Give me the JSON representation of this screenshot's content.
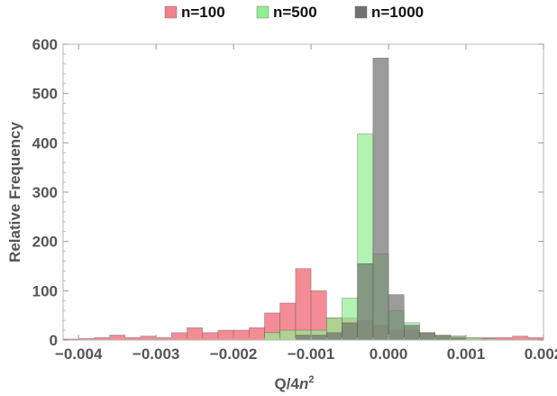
{
  "chart_data": {
    "type": "bar",
    "subtype": "overlapping-histogram",
    "title": "",
    "xlabel_main": "Q/4",
    "xlabel_var": "n",
    "xlabel_sup": "2",
    "ylabel": "Relative Frequency",
    "xlim": [
      -0.0042,
      0.002
    ],
    "ylim": [
      0,
      600
    ],
    "bin_width": 0.0002,
    "x_ticks": [
      -0.004,
      -0.003,
      -0.002,
      -0.001,
      0.0,
      0.001,
      0.002
    ],
    "x_tick_labels": [
      "−0.004",
      "−0.003",
      "−0.002",
      "−0.001",
      "0.000",
      "0.001",
      "0.002"
    ],
    "y_ticks": [
      0,
      100,
      200,
      300,
      400,
      500,
      600
    ],
    "y_tick_labels": [
      "0",
      "100",
      "200",
      "300",
      "400",
      "500",
      "600"
    ],
    "legend_position": "top",
    "grid": false,
    "series": [
      {
        "name": "n=100",
        "color": "#f2808a",
        "bins": [
          {
            "x0": -0.0042,
            "y": 2
          },
          {
            "x0": -0.004,
            "y": 3
          },
          {
            "x0": -0.0038,
            "y": 5
          },
          {
            "x0": -0.0036,
            "y": 10
          },
          {
            "x0": -0.0034,
            "y": 5
          },
          {
            "x0": -0.0032,
            "y": 8
          },
          {
            "x0": -0.003,
            "y": 5
          },
          {
            "x0": -0.0028,
            "y": 15
          },
          {
            "x0": -0.0026,
            "y": 25
          },
          {
            "x0": -0.0024,
            "y": 15
          },
          {
            "x0": -0.0022,
            "y": 20
          },
          {
            "x0": -0.002,
            "y": 20
          },
          {
            "x0": -0.0018,
            "y": 25
          },
          {
            "x0": -0.0016,
            "y": 55
          },
          {
            "x0": -0.0014,
            "y": 75
          },
          {
            "x0": -0.0012,
            "y": 145
          },
          {
            "x0": -0.001,
            "y": 100
          },
          {
            "x0": -0.0008,
            "y": 45
          },
          {
            "x0": -0.0006,
            "y": 45
          },
          {
            "x0": -0.0004,
            "y": 40
          },
          {
            "x0": -0.0002,
            "y": 30
          },
          {
            "x0": 0.0,
            "y": 20
          },
          {
            "x0": 0.0002,
            "y": 20
          },
          {
            "x0": 0.0004,
            "y": 15
          },
          {
            "x0": 0.0006,
            "y": 10
          },
          {
            "x0": 0.0008,
            "y": 8
          },
          {
            "x0": 0.001,
            "y": 5
          },
          {
            "x0": 0.0012,
            "y": 5
          },
          {
            "x0": 0.0014,
            "y": 5
          },
          {
            "x0": 0.0016,
            "y": 8
          },
          {
            "x0": 0.0018,
            "y": 5
          }
        ]
      },
      {
        "name": "n=500",
        "color": "#90f090",
        "bins": [
          {
            "x0": -0.0016,
            "y": 15
          },
          {
            "x0": -0.0014,
            "y": 20
          },
          {
            "x0": -0.0012,
            "y": 20
          },
          {
            "x0": -0.001,
            "y": 20
          },
          {
            "x0": -0.0008,
            "y": 45
          },
          {
            "x0": -0.0006,
            "y": 85
          },
          {
            "x0": -0.0004,
            "y": 418
          },
          {
            "x0": -0.0002,
            "y": 175
          },
          {
            "x0": 0.0,
            "y": 60
          },
          {
            "x0": 0.0002,
            "y": 35
          },
          {
            "x0": 0.0004,
            "y": 15
          },
          {
            "x0": 0.0006,
            "y": 10
          },
          {
            "x0": 0.0008,
            "y": 8
          },
          {
            "x0": 0.001,
            "y": 5
          },
          {
            "x0": 0.0012,
            "y": 3
          }
        ]
      },
      {
        "name": "n=1000",
        "color": "#707070",
        "bins": [
          {
            "x0": -0.0012,
            "y": 10
          },
          {
            "x0": -0.001,
            "y": 10
          },
          {
            "x0": -0.0008,
            "y": 15
          },
          {
            "x0": -0.0006,
            "y": 35
          },
          {
            "x0": -0.0004,
            "y": 155
          },
          {
            "x0": -0.0002,
            "y": 572
          },
          {
            "x0": 0.0,
            "y": 92
          },
          {
            "x0": 0.0002,
            "y": 30
          },
          {
            "x0": 0.0004,
            "y": 15
          },
          {
            "x0": 0.0006,
            "y": 8
          },
          {
            "x0": 0.0008,
            "y": 5
          }
        ]
      }
    ]
  }
}
